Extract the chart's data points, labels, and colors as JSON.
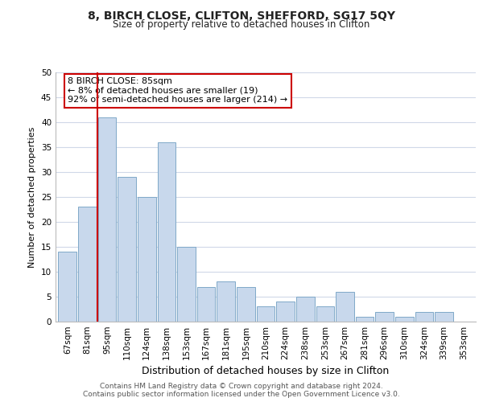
{
  "title": "8, BIRCH CLOSE, CLIFTON, SHEFFORD, SG17 5QY",
  "subtitle": "Size of property relative to detached houses in Clifton",
  "xlabel": "Distribution of detached houses by size in Clifton",
  "ylabel": "Number of detached properties",
  "categories": [
    "67sqm",
    "81sqm",
    "95sqm",
    "110sqm",
    "124sqm",
    "138sqm",
    "153sqm",
    "167sqm",
    "181sqm",
    "195sqm",
    "210sqm",
    "224sqm",
    "238sqm",
    "253sqm",
    "267sqm",
    "281sqm",
    "296sqm",
    "310sqm",
    "324sqm",
    "339sqm",
    "353sqm"
  ],
  "values": [
    14,
    23,
    41,
    29,
    25,
    36,
    15,
    7,
    8,
    7,
    3,
    4,
    5,
    3,
    6,
    1,
    2,
    1,
    2,
    2,
    0
  ],
  "bar_color": "#c8d8ec",
  "bar_edge_color": "#7fa8c8",
  "vline_x": 1.5,
  "vline_color": "#cc0000",
  "annotation_text": "8 BIRCH CLOSE: 85sqm\n← 8% of detached houses are smaller (19)\n92% of semi-detached houses are larger (214) →",
  "annotation_box_color": "#ffffff",
  "annotation_box_edge_color": "#cc0000",
  "ylim": [
    0,
    50
  ],
  "yticks": [
    0,
    5,
    10,
    15,
    20,
    25,
    30,
    35,
    40,
    45,
    50
  ],
  "footer1": "Contains HM Land Registry data © Crown copyright and database right 2024.",
  "footer2": "Contains public sector information licensed under the Open Government Licence v3.0.",
  "bg_color": "#ffffff",
  "grid_color": "#d0d8e8",
  "title_fontsize": 10,
  "subtitle_fontsize": 8.5,
  "xlabel_fontsize": 9,
  "ylabel_fontsize": 8,
  "tick_fontsize": 7.5,
  "ann_fontsize": 8,
  "footer_fontsize": 6.5
}
